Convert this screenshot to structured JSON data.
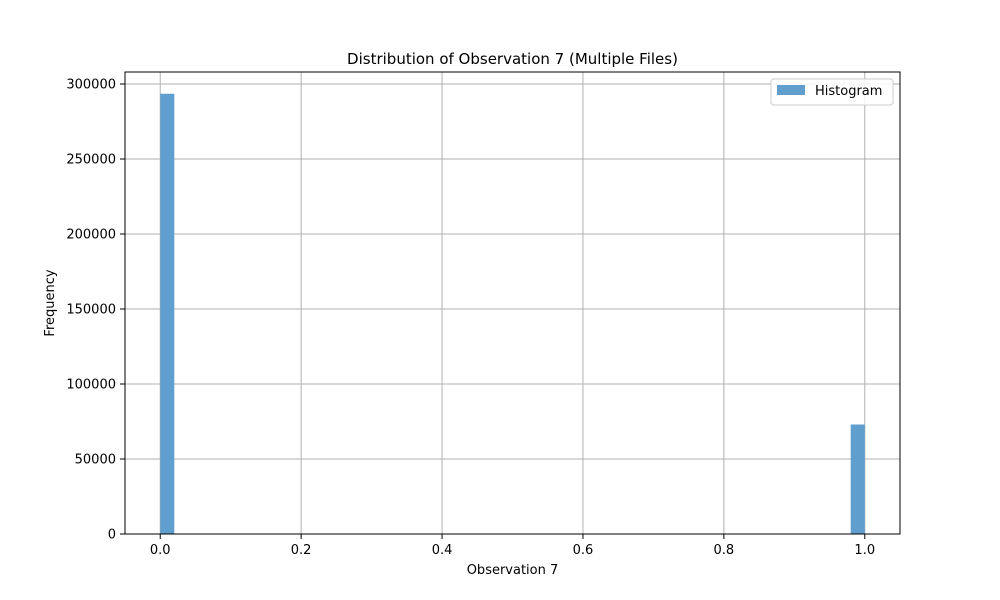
{
  "chart_data": {
    "type": "bar",
    "title": "Distribution of Observation 7 (Multiple Files)",
    "xlabel": "Observation 7",
    "ylabel": "Frequency",
    "xlim": [
      -0.05,
      1.05
    ],
    "ylim": [
      0,
      308000
    ],
    "xticks": [
      0.0,
      0.2,
      0.4,
      0.6,
      0.8,
      1.0
    ],
    "xtick_labels": [
      "0.0",
      "0.2",
      "0.4",
      "0.6",
      "0.8",
      "1.0"
    ],
    "yticks": [
      0,
      50000,
      100000,
      150000,
      200000,
      250000,
      300000
    ],
    "ytick_labels": [
      "0",
      "50000",
      "100000",
      "150000",
      "200000",
      "250000",
      "300000"
    ],
    "grid": true,
    "legend_position": "top-right",
    "series": [
      {
        "name": "Histogram",
        "color": "#5f9ecd",
        "bins": [
          {
            "x0": 0.0,
            "x1": 0.02,
            "count": 293500
          },
          {
            "x0": 0.98,
            "x1": 1.0,
            "count": 73000
          }
        ]
      }
    ]
  }
}
